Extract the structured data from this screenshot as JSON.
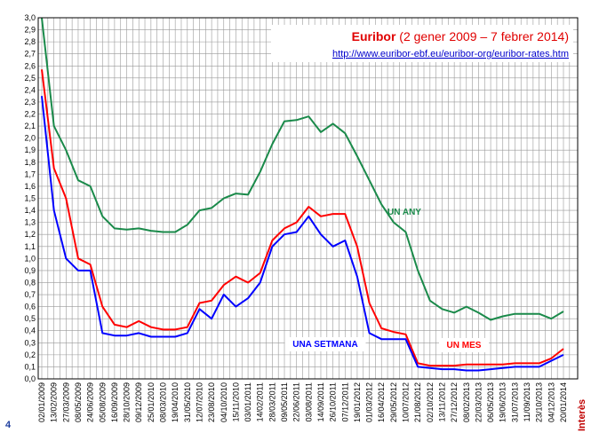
{
  "page_number": 4,
  "chart_data": {
    "type": "line",
    "title": "Euribor",
    "subtitle": "(2 gener 2009 – 7 febrer 2014)",
    "url": "http://www.euribor-ebf.eu/euribor-org/euribor-rates.htm",
    "x_label": "Interès",
    "x": [
      "02/01/2009",
      "13/02/2009",
      "27/03/2009",
      "08/05/2009",
      "24/06/2009",
      "05/08/2009",
      "16/09/2009",
      "28/10/2009",
      "09/12/2009",
      "25/01/2010",
      "08/03/2010",
      "19/04/2010",
      "31/05/2010",
      "12/07/2010",
      "23/08/2010",
      "04/10/2010",
      "15/11/2010",
      "03/01/2011",
      "14/02/2011",
      "28/03/2011",
      "09/05/2011",
      "22/06/2011",
      "03/08/2011",
      "14/09/2011",
      "26/10/2011",
      "07/12/2011",
      "19/01/2012",
      "01/03/2012",
      "16/04/2012",
      "29/05/2012",
      "10/07/2012",
      "21/08/2012",
      "02/10/2012",
      "13/11/2012",
      "27/12/2012",
      "08/02/2013",
      "22/03/2013",
      "06/05/2013",
      "19/06/2013",
      "31/07/2013",
      "11/09/2013",
      "23/10/2013",
      "04/12/2013",
      "20/01/2014"
    ],
    "series": [
      {
        "name": "UN ANY",
        "color": "#1a8a4a",
        "values": [
          3.0,
          2.1,
          1.9,
          1.65,
          1.6,
          1.35,
          1.25,
          1.24,
          1.25,
          1.23,
          1.22,
          1.22,
          1.28,
          1.4,
          1.42,
          1.5,
          1.54,
          1.53,
          1.72,
          1.95,
          2.14,
          2.15,
          2.18,
          2.05,
          2.12,
          2.04,
          1.85,
          1.65,
          1.45,
          1.3,
          1.22,
          0.9,
          0.65,
          0.58,
          0.55,
          0.6,
          0.55,
          0.49,
          0.52,
          0.54,
          0.54,
          0.54,
          0.5,
          0.56
        ]
      },
      {
        "name": "UN MES",
        "color": "#ff0000",
        "values": [
          2.57,
          1.75,
          1.5,
          1.0,
          0.95,
          0.6,
          0.45,
          0.43,
          0.48,
          0.43,
          0.41,
          0.41,
          0.43,
          0.63,
          0.65,
          0.78,
          0.85,
          0.8,
          0.88,
          1.15,
          1.25,
          1.3,
          1.43,
          1.35,
          1.37,
          1.37,
          1.1,
          0.63,
          0.42,
          0.39,
          0.37,
          0.13,
          0.11,
          0.11,
          0.11,
          0.12,
          0.12,
          0.12,
          0.12,
          0.13,
          0.13,
          0.13,
          0.17,
          0.25
        ]
      },
      {
        "name": "UNA SETMANA",
        "color": "#0000ff",
        "values": [
          2.35,
          1.4,
          1.0,
          0.9,
          0.9,
          0.38,
          0.36,
          0.36,
          0.38,
          0.35,
          0.35,
          0.35,
          0.38,
          0.58,
          0.5,
          0.7,
          0.6,
          0.67,
          0.8,
          1.1,
          1.2,
          1.22,
          1.35,
          1.2,
          1.1,
          1.15,
          0.85,
          0.38,
          0.33,
          0.33,
          0.33,
          0.1,
          0.09,
          0.08,
          0.08,
          0.07,
          0.07,
          0.08,
          0.09,
          0.1,
          0.1,
          0.1,
          0.15,
          0.2
        ]
      }
    ],
    "ylim": [
      0,
      3
    ],
    "yticks": [
      {
        "value": 0,
        "label": "0,0"
      },
      {
        "value": 0.1,
        "label": "0,1"
      },
      {
        "value": 0.2,
        "label": "0,2"
      },
      {
        "value": 0.3,
        "label": "0,3"
      },
      {
        "value": 0.4,
        "label": "0,4"
      },
      {
        "value": 0.5,
        "label": "0,5"
      },
      {
        "value": 0.6,
        "label": "0,6"
      },
      {
        "value": 0.7,
        "label": "0,7"
      },
      {
        "value": 0.8,
        "label": "0,8"
      },
      {
        "value": 0.9,
        "label": "0,9"
      },
      {
        "value": 1,
        "label": "1,0"
      },
      {
        "value": 1.1,
        "label": "1,1"
      },
      {
        "value": 1.2,
        "label": "1,2"
      },
      {
        "value": 1.3,
        "label": "1,3"
      },
      {
        "value": 1.4,
        "label": "1,4"
      },
      {
        "value": 1.5,
        "label": "1,5"
      },
      {
        "value": 1.6,
        "label": "1,6"
      },
      {
        "value": 1.7,
        "label": "1,7"
      },
      {
        "value": 1.8,
        "label": "1,8"
      },
      {
        "value": 1.9,
        "label": "1,9"
      },
      {
        "value": 2,
        "label": "2,0"
      },
      {
        "value": 2.1,
        "label": "2,1"
      },
      {
        "value": 2.2,
        "label": "2,2"
      },
      {
        "value": 2.3,
        "label": "2,3"
      },
      {
        "value": 2.4,
        "label": "2,4"
      },
      {
        "value": 2.5,
        "label": "2,5"
      },
      {
        "value": 2.6,
        "label": "2,6"
      },
      {
        "value": 2.7,
        "label": "2,7"
      },
      {
        "value": 2.8,
        "label": "2,8"
      },
      {
        "value": 2.9,
        "label": "2,9"
      },
      {
        "value": 3,
        "label": "3,0"
      }
    ],
    "grid": true
  }
}
